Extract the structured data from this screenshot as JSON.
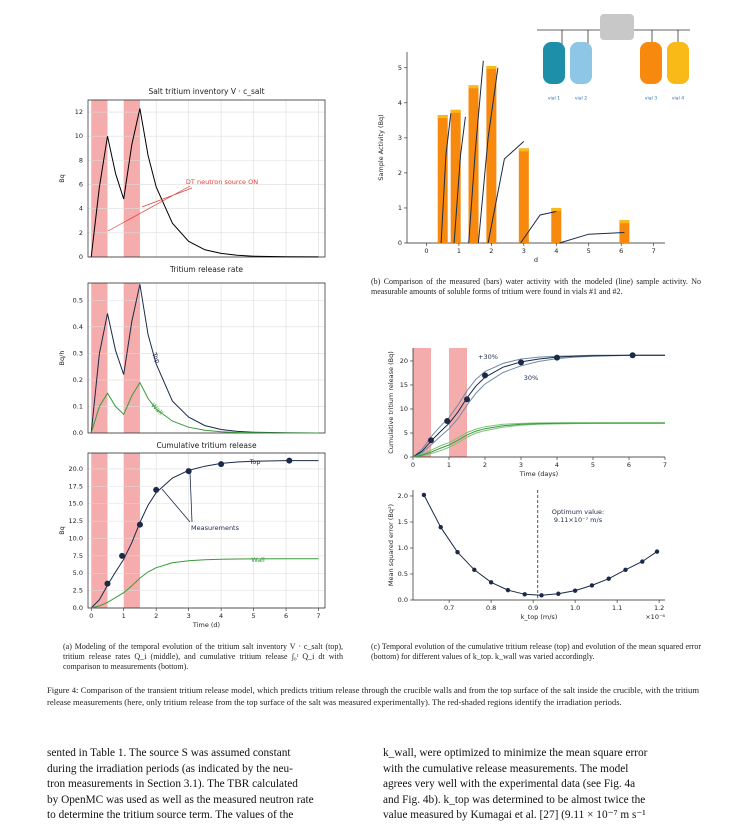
{
  "chart_data": [
    {
      "type": "line",
      "title": "Salt tritium inventory V · c_salt",
      "y_label": "Bq",
      "xlim": [
        -0.1,
        7.2
      ],
      "ylim": [
        0,
        13
      ],
      "xticks": [
        0,
        1,
        2,
        3,
        4,
        5,
        6,
        7
      ],
      "yticks": [
        0,
        2,
        4,
        6,
        8,
        10,
        12
      ],
      "grid": true,
      "shaded_regions": [
        [
          0,
          0.5
        ],
        [
          1,
          1.5
        ]
      ],
      "shade_color": "#f4a3a3",
      "annotations": [
        "DT neutron source ON"
      ],
      "annotation_color": "#e0403a",
      "x": [
        0,
        0.25,
        0.5,
        0.75,
        1,
        1.25,
        1.5,
        1.75,
        2,
        2.5,
        3,
        3.5,
        4,
        4.5,
        5,
        6,
        7
      ],
      "series": [
        {
          "color": "#000000",
          "values": [
            0,
            5.8,
            10,
            6.9,
            4.8,
            9.3,
            12.3,
            8.4,
            5.8,
            2.8,
            1.3,
            0.6,
            0.3,
            0.15,
            0.07,
            0.02,
            0.005
          ]
        }
      ]
    },
    {
      "type": "line",
      "title": "Tritium release rate",
      "y_label": "Bq/h",
      "xlim": [
        -0.1,
        7.2
      ],
      "ylim": [
        0,
        0.565
      ],
      "xticks": [
        0,
        1,
        2,
        3,
        4,
        5,
        6,
        7
      ],
      "yticks": [
        {
          "value": 0,
          "label": "0.0"
        },
        0.1,
        0.2,
        0.3,
        0.4,
        0.5
      ],
      "grid": true,
      "shaded_regions": [
        [
          0,
          0.5
        ],
        [
          1,
          1.5
        ]
      ],
      "shade_color": "#f4a3a3",
      "x": [
        0,
        0.25,
        0.5,
        0.75,
        1,
        1.25,
        1.5,
        1.75,
        2,
        2.5,
        3,
        3.5,
        4,
        4.5,
        5,
        6,
        7
      ],
      "series": [
        {
          "name": "Top",
          "color": "#1b2a49",
          "values": [
            0,
            0.3,
            0.45,
            0.31,
            0.22,
            0.42,
            0.56,
            0.37,
            0.26,
            0.12,
            0.06,
            0.028,
            0.013,
            0.006,
            0.003,
            0.001,
            0
          ]
        },
        {
          "name": "Wall",
          "color": "#3a9a3a",
          "values": [
            0,
            0.1,
            0.15,
            0.1,
            0.07,
            0.14,
            0.19,
            0.13,
            0.09,
            0.045,
            0.022,
            0.01,
            0.005,
            0.002,
            0.001,
            0,
            0
          ]
        }
      ]
    },
    {
      "type": "line",
      "title": "Cumulative tritium release",
      "y_label": "Bq",
      "x_label": "Time (d)",
      "xlim": [
        -0.1,
        7.2
      ],
      "ylim": [
        0,
        22.3
      ],
      "xticks": [
        0,
        1,
        2,
        3,
        4,
        5,
        6,
        7
      ],
      "yticks": [
        {
          "value": 0,
          "label": "0.0"
        },
        2.5,
        {
          "value": 5,
          "label": "5.0"
        },
        7.5,
        {
          "value": 10,
          "label": "10.0"
        },
        12.5,
        {
          "value": 15,
          "label": "15.0"
        },
        17.5,
        {
          "value": 20,
          "label": "20.0"
        }
      ],
      "grid": true,
      "shaded_regions": [
        [
          0,
          0.5
        ],
        [
          1,
          1.5
        ]
      ],
      "shade_color": "#f4a3a3",
      "annotations": [
        "Measurements"
      ],
      "annotation_color": "#1b2a49",
      "x": [
        0,
        0.25,
        0.5,
        0.75,
        1,
        1.25,
        1.5,
        1.75,
        2,
        2.5,
        3,
        3.5,
        4,
        4.5,
        5,
        6,
        7
      ],
      "series": [
        {
          "name": "Top",
          "color": "#1b2a49",
          "values": [
            0,
            1.2,
            3.3,
            5.2,
            7.0,
            9.4,
            12.3,
            14.8,
            16.6,
            18.7,
            19.8,
            20.4,
            20.8,
            21.0,
            21.1,
            21.2,
            21.2
          ]
        },
        {
          "name": "Wall",
          "color": "#3a9a3a",
          "values": [
            0,
            0.3,
            0.8,
            1.5,
            2.2,
            3.2,
            4.3,
            5.2,
            5.8,
            6.5,
            6.8,
            6.95,
            7.02,
            7.05,
            7.07,
            7.08,
            7.08
          ]
        },
        {
          "type": "scatter",
          "color": "#1b2a49",
          "x": [
            0.5,
            0.95,
            1.5,
            2,
            3,
            4,
            6.1
          ],
          "values": [
            3.5,
            7.5,
            12,
            17,
            19.7,
            20.7,
            21.2
          ]
        }
      ]
    },
    {
      "type": "bar",
      "y_label": "Sample Activity (Bq)",
      "x_label": "d",
      "xlim": [
        -0.6,
        7.35
      ],
      "ylim": [
        0,
        5.45
      ],
      "xticks": [
        0,
        1,
        2,
        3,
        4,
        5,
        6,
        7
      ],
      "yticks": [
        0,
        1,
        2,
        3,
        4,
        5
      ],
      "grid": false,
      "vials": [
        "vial 1",
        "vial 2",
        "vial 3",
        "vial 4"
      ],
      "series": [
        {
          "type": "bar",
          "color": "#f78a0e",
          "x": [
            0.5,
            0.9,
            1.45,
            2.0,
            3.0,
            4.0,
            6.1
          ],
          "values": [
            3.65,
            3.8,
            4.5,
            5.05,
            2.7,
            1.0,
            0.65
          ]
        },
        {
          "type": "line",
          "color": "#1b2a49",
          "x": [
            0.45,
            0.6,
            0.75,
            0.8,
            0.85,
            1.05,
            1.2,
            1.25,
            1.3,
            1.5,
            1.75,
            1.55,
            1.6,
            1.9,
            2.2,
            1.85,
            1.9,
            2.4,
            3.0,
            2.85,
            2.9,
            3.5,
            4.0,
            4.05,
            4.1,
            5.0,
            6.1
          ],
          "values": [
            0,
            2.5,
            3.7,
            null,
            0,
            2.5,
            3.6,
            null,
            0,
            2.6,
            5.2,
            null,
            0,
            3.0,
            5.0,
            null,
            0,
            2.4,
            2.9,
            null,
            0,
            0.8,
            0.9,
            null,
            0,
            0.25,
            0.3
          ]
        }
      ]
    },
    {
      "type": "line",
      "y_label": "Cumulative tritium release (Bq)",
      "x_label": "Time (days)",
      "xlim": [
        0,
        7
      ],
      "ylim": [
        0,
        22.7
      ],
      "xticks": [
        0,
        1,
        2,
        3,
        4,
        5,
        6,
        7
      ],
      "yticks": [
        0,
        5,
        10,
        15,
        20
      ],
      "grid": false,
      "shaded_regions": [
        [
          0,
          0.5
        ],
        [
          1,
          1.5
        ]
      ],
      "shade_color": "#f4a3a3",
      "annotations": [
        "+30%",
        "30%"
      ],
      "annotation_color": "#1b2a49",
      "x": [
        0,
        0.25,
        0.5,
        0.75,
        1,
        1.25,
        1.5,
        1.75,
        2,
        2.5,
        3,
        3.5,
        4,
        4.5,
        5,
        6,
        7
      ],
      "series": [
        {
          "color": "#6f8ba5",
          "values": [
            0,
            1.6,
            4.2,
            6.3,
            8.2,
            10.8,
            13.8,
            16.2,
            17.8,
            19.5,
            20.4,
            20.8,
            21.0,
            21.1,
            21.2,
            21.2,
            21.2
          ]
        },
        {
          "color": "#6f8ba5",
          "values": [
            0,
            0.9,
            2.5,
            4.2,
            5.9,
            8.0,
            10.8,
            13.3,
            15.2,
            17.6,
            19.0,
            19.9,
            20.5,
            20.8,
            21.0,
            21.15,
            21.2
          ]
        },
        {
          "color": "#1b2a49",
          "values": [
            0,
            1.2,
            3.3,
            5.2,
            7.0,
            9.4,
            12.3,
            14.8,
            16.6,
            18.7,
            19.8,
            20.4,
            20.8,
            21.0,
            21.1,
            21.2,
            21.2
          ]
        },
        {
          "color": "#7cc47c",
          "values": [
            0,
            0.6,
            1.4,
            2.3,
            3.0,
            4.0,
            5.1,
            5.8,
            6.3,
            6.8,
            7.0,
            7.1,
            7.15,
            7.15,
            7.15,
            7.15,
            7.15
          ]
        },
        {
          "color": "#7cc47c",
          "values": [
            0,
            0.25,
            0.7,
            1.3,
            2.0,
            3.0,
            4.1,
            5.0,
            5.5,
            6.2,
            6.6,
            6.8,
            6.9,
            6.95,
            7.0,
            7.0,
            7.0
          ]
        },
        {
          "color": "#3a9a3a",
          "values": [
            0,
            0.4,
            1.0,
            1.8,
            2.5,
            3.5,
            4.6,
            5.4,
            5.9,
            6.5,
            6.8,
            6.95,
            7.0,
            7.05,
            7.07,
            7.08,
            7.08
          ]
        },
        {
          "type": "scatter",
          "color": "#1b2a49",
          "x": [
            0.5,
            0.95,
            1.5,
            2,
            3,
            4,
            6.1
          ],
          "values": [
            3.5,
            7.5,
            12,
            17,
            19.7,
            20.7,
            21.2
          ]
        }
      ]
    },
    {
      "type": "line",
      "y_label": "Mean squared error (Bq²)",
      "x_label": "k_top (m/s)",
      "x_multiplier": "×10⁻⁶",
      "xlim": [
        0.614,
        1.214
      ],
      "ylim": [
        0,
        2.115
      ],
      "xticks": [
        0.7,
        0.8,
        0.9,
        {
          "value": 1,
          "label": "1.0"
        },
        1.1,
        1.2
      ],
      "yticks": [
        {
          "value": 0,
          "label": "0.0"
        },
        0.5,
        {
          "value": 1,
          "label": "1.0"
        },
        1.5,
        {
          "value": 2,
          "label": "2.0"
        }
      ],
      "grid": false,
      "optimum_x": 0.911,
      "annotations": [
        "Optimum value:",
        "9.11×10⁻⁷ m/s"
      ],
      "annotation_color": "#1b2a49",
      "x": [
        0.64,
        0.68,
        0.72,
        0.76,
        0.8,
        0.84,
        0.88,
        0.92,
        0.96,
        1.0,
        1.04,
        1.08,
        1.12,
        1.16,
        1.195
      ],
      "series": [
        {
          "color": "#1b2a49",
          "markers": true,
          "values": [
            2.02,
            1.4,
            0.92,
            0.58,
            0.34,
            0.19,
            0.11,
            0.09,
            0.12,
            0.18,
            0.28,
            0.41,
            0.58,
            0.74,
            0.93
          ]
        }
      ]
    }
  ],
  "document": {
    "caption_a": "(a) Modeling of the temporal evolution of the tritium salt inventory V · c_salt (top), tritium release rates Q_i (middle), and cumulative tritium release ∫₀ᵗ Q_i dt with comparison to measurements (bottom).",
    "caption_b": "(b) Comparison of the measured (bars) water activity with the modeled (line) sample activity. No measurable amounts of soluble forms of tritium were found in vials #1 and #2.",
    "caption_c": "(c) Temporal evolution of the cumulative tritium release (top) and evolution of the mean squared error (bottom) for different values of k_top. k_wall was varied accordingly.",
    "figure_caption": "Figure 4: Comparison of the transient tritium release model, which predicts tritium release through the crucible walls and from the top surface of the salt inside the crucible, with the tritium release measurements (here, only tritium release from the top surface of the salt was measured experimentally). The red-shaded regions identify the irradiation periods.",
    "body_left": [
      "sented in Table 1. The source S was assumed constant",
      "during the irradiation periods (as indicated by the neu-",
      "tron measurements in Section 3.1). The TBR calculated",
      "by OpenMC was used as well as the measured neutron rate",
      "to determine the tritium source term. The values of the"
    ],
    "body_right": [
      "k_wall, were optimized to minimize the mean square error",
      "with the cumulative release measurements. The model",
      "agrees very well with the experimental data (see Fig. 4a",
      "and Fig. 4b). k_top was determined to be almost twice the",
      "value measured by Kumagai et al. [27] (9.11 × 10⁻⁷ m s⁻¹"
    ]
  }
}
